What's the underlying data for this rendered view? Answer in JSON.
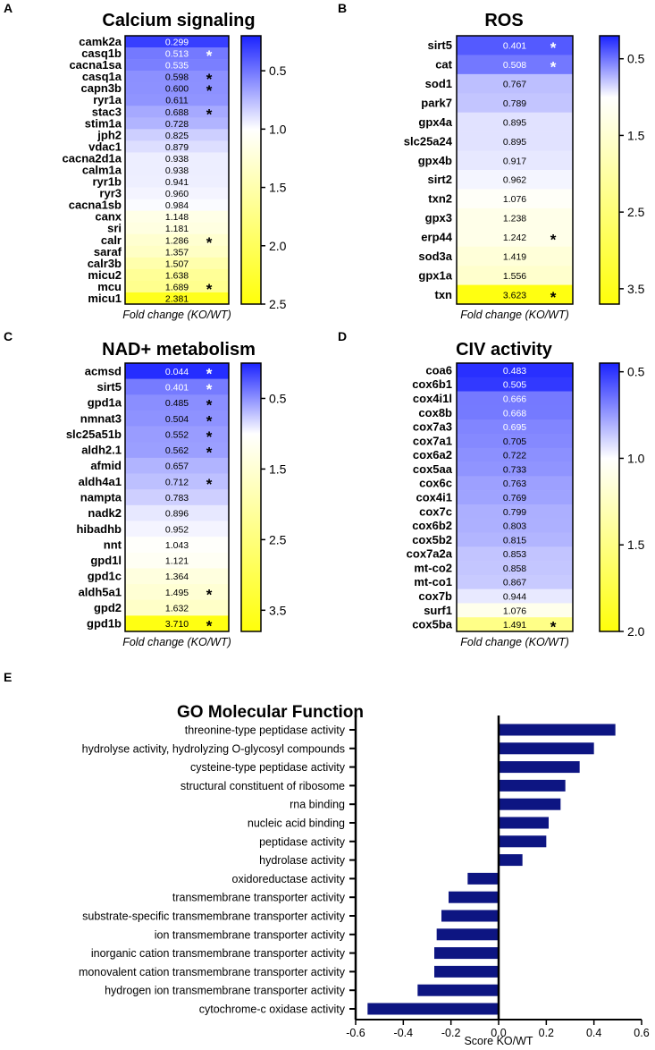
{
  "chart_data": [
    {
      "type": "heatmap",
      "panel": "A",
      "title": "Calcium signaling",
      "xlabel": "Fold change (KO/WT)",
      "genes": [
        "camk2a",
        "casq1b",
        "cacna1sa",
        "casq1a",
        "capn3b",
        "ryr1a",
        "stac3",
        "stim1a",
        "jph2",
        "vdac1",
        "cacna2d1a",
        "calm1a",
        "ryr1b",
        "ryr3",
        "cacna1sb",
        "canx",
        "sri",
        "calr",
        "saraf",
        "calr3b",
        "micu2",
        "mcu",
        "micu1"
      ],
      "values": [
        "0.299",
        "0.513",
        "0.535",
        "0.598",
        "0.600",
        "0.611",
        "0.688",
        "0.728",
        "0.825",
        "0.879",
        "0.938",
        "0.938",
        "0.941",
        "0.960",
        "0.984",
        "1.148",
        "1.181",
        "1.286",
        "1.357",
        "1.507",
        "1.638",
        "1.689",
        "2.381"
      ],
      "significant": [
        false,
        true,
        false,
        true,
        true,
        false,
        true,
        false,
        false,
        false,
        false,
        false,
        false,
        false,
        false,
        false,
        false,
        true,
        false,
        false,
        false,
        true,
        false
      ],
      "star_symbol": "*",
      "scale": {
        "min": 0.2,
        "mid": 1.0,
        "max": 2.5,
        "ticks": [
          "0.5",
          "1.0",
          "1.5",
          "2.0",
          "2.5"
        ],
        "tick_values": [
          0.5,
          1.0,
          1.5,
          2.0,
          2.5
        ]
      }
    },
    {
      "type": "heatmap",
      "panel": "B",
      "title": "ROS",
      "xlabel": "Fold change (KO/WT)",
      "genes": [
        "sirt5",
        "cat",
        "sod1",
        "park7",
        "gpx4a",
        "slc25a24",
        "gpx4b",
        "sirt2",
        "txn2",
        "gpx3",
        "erp44",
        "sod3a",
        "gpx1a",
        "txn"
      ],
      "values": [
        "0.401",
        "0.508",
        "0.767",
        "0.789",
        "0.895",
        "0.895",
        "0.917",
        "0.962",
        "1.076",
        "1.238",
        "1.242",
        "1.419",
        "1.556",
        "3.623"
      ],
      "significant": [
        true,
        true,
        false,
        false,
        false,
        false,
        false,
        false,
        false,
        false,
        true,
        false,
        false,
        true
      ],
      "star_symbol": "*",
      "scale": {
        "min": 0.2,
        "mid": 1.0,
        "max": 3.7,
        "ticks": [
          "0.5",
          "1.5",
          "2.5",
          "3.5"
        ],
        "tick_values": [
          0.5,
          1.5,
          2.5,
          3.5
        ]
      }
    },
    {
      "type": "heatmap",
      "panel": "C",
      "title": "NAD+ metabolism",
      "xlabel": "Fold change (KO/WT)",
      "genes": [
        "acmsd",
        "sirt5",
        "gpd1a",
        "nmnat3",
        "slc25a51b",
        "aldh2.1",
        "afmid",
        "aldh4a1",
        "nampta",
        "nadk2",
        "hibadhb",
        "nnt",
        "gpd1l",
        "gpd1c",
        "aldh5a1",
        "gpd2",
        "gpd1b"
      ],
      "values": [
        "0.044",
        "0.401",
        "0.485",
        "0.504",
        "0.552",
        "0.562",
        "0.657",
        "0.712",
        "0.783",
        "0.896",
        "0.952",
        "1.043",
        "1.121",
        "1.364",
        "1.495",
        "1.632",
        "3.710"
      ],
      "significant": [
        true,
        true,
        true,
        true,
        true,
        true,
        false,
        true,
        false,
        false,
        false,
        false,
        false,
        false,
        true,
        false,
        true
      ],
      "star_symbol": "*",
      "scale": {
        "min": 0.0,
        "mid": 1.0,
        "max": 3.8,
        "ticks": [
          "0.5",
          "1.5",
          "2.5",
          "3.5"
        ],
        "tick_values": [
          0.5,
          1.5,
          2.5,
          3.5
        ]
      }
    },
    {
      "type": "heatmap",
      "panel": "D",
      "title": "CIV activity",
      "xlabel": "Fold change (KO/WT)",
      "genes": [
        "coa6",
        "cox6b1",
        "cox4i1l",
        "cox8b",
        "cox7a3",
        "cox7a1",
        "cox6a2",
        "cox5aa",
        "cox6c",
        "cox4i1",
        "cox7c",
        "cox6b2",
        "cox5b2",
        "cox7a2a",
        "mt-co2",
        "mt-co1",
        "cox7b",
        "surf1",
        "cox5ba"
      ],
      "values": [
        "0.483",
        "0.505",
        "0.666",
        "0.668",
        "0.695",
        "0.705",
        "0.722",
        "0.733",
        "0.763",
        "0.769",
        "0.799",
        "0.803",
        "0.815",
        "0.853",
        "0.858",
        "0.867",
        "0.944",
        "1.076",
        "1.491"
      ],
      "significant": [
        false,
        false,
        false,
        false,
        false,
        false,
        false,
        false,
        false,
        false,
        false,
        false,
        false,
        false,
        false,
        false,
        false,
        false,
        true
      ],
      "star_symbol": "*",
      "scale": {
        "min": 0.45,
        "mid": 1.0,
        "max": 2.0,
        "ticks": [
          "0.5",
          "1.0",
          "1.5",
          "2.0"
        ],
        "tick_values": [
          0.5,
          1.0,
          1.5,
          2.0
        ]
      }
    },
    {
      "type": "bar",
      "orientation": "horizontal",
      "panel": "E",
      "title": "GO Molecular Function",
      "xlabel": "Score KO/WT",
      "xlim": [
        -0.6,
        0.6
      ],
      "xticks": [
        "-0.6",
        "-0.4",
        "-0.2",
        "0.0",
        "0.2",
        "0.4",
        "0.6"
      ],
      "xtick_values": [
        -0.6,
        -0.4,
        -0.2,
        0.0,
        0.2,
        0.4,
        0.6
      ],
      "categories": [
        "threonine-type peptidase activity",
        "hydrolyse activity, hydrolyzing O-glycosyl compounds",
        "cysteine-type peptidase activity",
        "structural constituent of ribosome",
        "rna binding",
        "nucleic acid binding",
        "peptidase activity",
        "hydrolase activity",
        "oxidoreductase activity",
        "transmembrane transporter activity",
        "substrate-specific transmembrane transporter activity",
        "ion transmembrane transporter activity",
        "inorganic cation transmembrane transporter activity",
        "monovalent cation transmembrane transporter activity",
        "hydrogen ion transmembrane transporter activity",
        "cytochrome-c oxidase activity"
      ],
      "values": [
        0.49,
        0.4,
        0.34,
        0.28,
        0.26,
        0.21,
        0.2,
        0.1,
        -0.13,
        -0.21,
        -0.24,
        -0.26,
        -0.27,
        -0.27,
        -0.34,
        -0.55
      ],
      "bar_color": "#0d1582"
    }
  ],
  "colors": {
    "low": "#1b23ff",
    "mid": "#ffffff",
    "high": "#ffff0a",
    "bar": "#0d1582",
    "frame": "#000000"
  }
}
